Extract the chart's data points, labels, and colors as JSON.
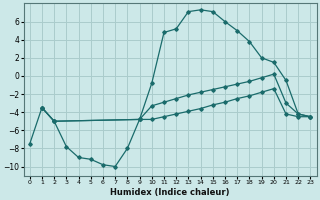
{
  "xlabel": "Humidex (Indice chaleur)",
  "bg_color": "#cce8e8",
  "grid_color": "#aacccc",
  "line_color": "#1a6b6b",
  "ylim": [
    -11,
    8
  ],
  "xlim": [
    -0.5,
    23.5
  ],
  "yticks": [
    -10,
    -8,
    -6,
    -4,
    -2,
    0,
    2,
    4,
    6
  ],
  "xticks": [
    0,
    1,
    2,
    3,
    4,
    5,
    6,
    7,
    8,
    9,
    10,
    11,
    12,
    13,
    14,
    15,
    16,
    17,
    18,
    19,
    20,
    21,
    22,
    23
  ],
  "curve1_x": [
    0,
    1,
    2,
    3,
    4,
    5,
    6,
    7,
    8,
    9,
    10,
    11,
    12,
    13,
    14,
    15,
    16,
    17,
    18,
    19,
    20,
    21,
    22,
    23
  ],
  "curve1_y": [
    -7.5,
    -3.5,
    -5.0,
    -7.8,
    -9.0,
    -9.2,
    -9.8,
    -10.0,
    -8.0,
    -4.8,
    -0.8,
    4.8,
    5.2,
    7.1,
    7.3,
    7.1,
    6.0,
    5.0,
    3.8,
    2.0,
    1.5,
    -0.5,
    -4.2,
    -4.5
  ],
  "curve2_x": [
    1,
    2,
    9,
    10,
    11,
    12,
    13,
    14,
    15,
    16,
    17,
    18,
    19,
    20,
    21,
    22,
    23
  ],
  "curve2_y": [
    -3.5,
    -5.0,
    -4.8,
    -3.3,
    -2.9,
    -2.5,
    -2.1,
    -1.8,
    -1.5,
    -1.2,
    -0.9,
    -0.6,
    -0.2,
    0.2,
    -3.0,
    -4.2,
    -4.5
  ],
  "curve3_x": [
    1,
    2,
    9,
    10,
    11,
    12,
    13,
    14,
    15,
    16,
    17,
    18,
    19,
    20,
    21,
    22,
    23
  ],
  "curve3_y": [
    -3.5,
    -5.0,
    -4.8,
    -4.8,
    -4.5,
    -4.2,
    -3.9,
    -3.6,
    -3.2,
    -2.9,
    -2.5,
    -2.2,
    -1.8,
    -1.4,
    -4.2,
    -4.5,
    -4.5
  ]
}
